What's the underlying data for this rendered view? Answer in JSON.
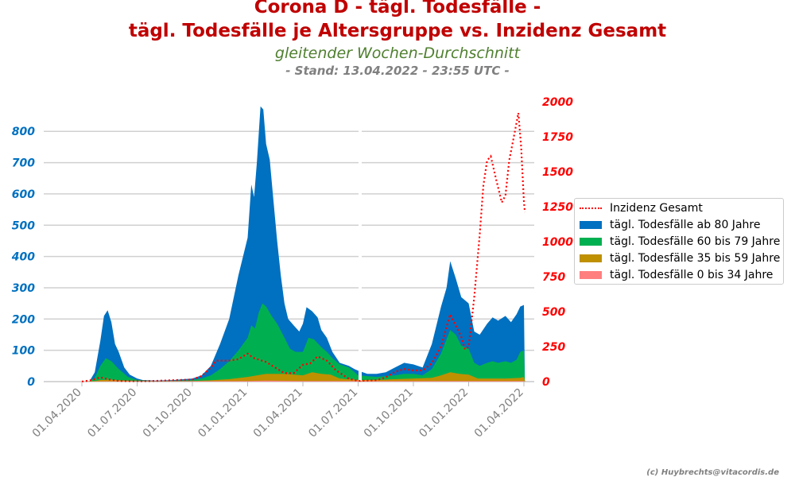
{
  "header": {
    "title_line1": "Corona D - tägl. Todesfälle -",
    "title_line2": "tägl. Todesfälle je Altersgruppe vs. Inzidenz Gesamt",
    "subtitle": "gleitender Wochen-Durchschnitt",
    "stand": "- Stand: 13.04.2022 - 23:55 UTC -"
  },
  "credit": "(c) Huybrechts@vitacordis.de",
  "colors": {
    "ab80": "#0070c0",
    "60bis79": "#00b050",
    "35bis59": "#bf9000",
    "0bis34": "#ff7f7f",
    "inzidenz": "#ff0000",
    "left_axis": "#0070c0",
    "right_axis": "#ff0000"
  },
  "chart_data": {
    "type": "area",
    "title": "Corona D - tägl. Todesfälle - tägl. Todesfälle je Altersgruppe vs. Inzidenz Gesamt",
    "subtitle": "gleitender Wochen-Durchschnitt",
    "x_ticks": [
      "01.04.2020",
      "01.07.2020",
      "01.10.2020",
      "01.01.2021",
      "01.04.2021",
      "01.07.2021",
      "01.10.2021",
      "01.01.2022",
      "01.04.2022"
    ],
    "x_tick_months": [
      0,
      3,
      6,
      9,
      12,
      15,
      18,
      21,
      24
    ],
    "y_left": {
      "ticks": [
        0,
        100,
        200,
        300,
        400,
        500,
        600,
        700,
        800
      ],
      "ylim": [
        0,
        915
      ]
    },
    "y_right": {
      "ticks": [
        0,
        250,
        500,
        750,
        1000,
        1250,
        1500,
        1750,
        2000
      ],
      "ylim": [
        0,
        2000
      ]
    },
    "grid": true,
    "legend_position": "right",
    "series": [
      {
        "name": "tägl. Todesfälle ab 80 Jahre",
        "type": "area",
        "axis": "left",
        "points": [
          [
            0,
            0
          ],
          [
            0.4,
            0
          ],
          [
            0.7,
            30
          ],
          [
            1,
            130
          ],
          [
            1.2,
            210
          ],
          [
            1.4,
            228
          ],
          [
            1.6,
            190
          ],
          [
            1.8,
            120
          ],
          [
            2,
            95
          ],
          [
            2.3,
            45
          ],
          [
            2.6,
            22
          ],
          [
            3,
            10
          ],
          [
            3.3,
            5
          ],
          [
            4,
            3
          ],
          [
            5,
            5
          ],
          [
            6,
            10
          ],
          [
            6.5,
            20
          ],
          [
            7,
            50
          ],
          [
            7.5,
            120
          ],
          [
            8,
            200
          ],
          [
            8.5,
            340
          ],
          [
            9,
            460
          ],
          [
            9.2,
            630
          ],
          [
            9.35,
            590
          ],
          [
            9.5,
            700
          ],
          [
            9.7,
            880
          ],
          [
            9.85,
            870
          ],
          [
            10,
            760
          ],
          [
            10.2,
            710
          ],
          [
            10.4,
            580
          ],
          [
            10.6,
            450
          ],
          [
            10.8,
            340
          ],
          [
            11,
            250
          ],
          [
            11.2,
            200
          ],
          [
            11.5,
            180
          ],
          [
            11.8,
            160
          ],
          [
            12,
            185
          ],
          [
            12.2,
            238
          ],
          [
            12.5,
            225
          ],
          [
            12.8,
            205
          ],
          [
            13,
            165
          ],
          [
            13.3,
            140
          ],
          [
            13.6,
            95
          ],
          [
            14,
            60
          ],
          [
            14.5,
            50
          ],
          [
            14.8,
            40
          ],
          [
            15,
            35
          ],
          [
            15.5,
            25
          ],
          [
            16,
            25
          ],
          [
            16.5,
            30
          ],
          [
            17,
            45
          ],
          [
            17.5,
            60
          ],
          [
            18,
            55
          ],
          [
            18.5,
            45
          ],
          [
            19,
            120
          ],
          [
            19.5,
            240
          ],
          [
            19.8,
            300
          ],
          [
            20,
            385
          ],
          [
            20.3,
            330
          ],
          [
            20.6,
            270
          ],
          [
            21,
            250
          ],
          [
            21.3,
            160
          ],
          [
            21.6,
            150
          ],
          [
            22,
            185
          ],
          [
            22.3,
            205
          ],
          [
            22.6,
            195
          ],
          [
            23,
            210
          ],
          [
            23.3,
            190
          ],
          [
            23.6,
            215
          ],
          [
            23.8,
            240
          ],
          [
            24,
            245
          ],
          [
            24.05,
            0
          ]
        ]
      },
      {
        "name": "tägl. Todesfälle 60 bis 79 Jahre",
        "type": "area",
        "axis": "left",
        "points": [
          [
            0,
            0
          ],
          [
            0.4,
            0
          ],
          [
            0.7,
            12
          ],
          [
            1,
            50
          ],
          [
            1.3,
            75
          ],
          [
            1.6,
            65
          ],
          [
            2,
            40
          ],
          [
            2.5,
            15
          ],
          [
            3,
            5
          ],
          [
            4,
            2
          ],
          [
            5,
            3
          ],
          [
            6,
            5
          ],
          [
            6.5,
            10
          ],
          [
            7,
            20
          ],
          [
            7.5,
            40
          ],
          [
            8,
            65
          ],
          [
            8.5,
            100
          ],
          [
            9,
            140
          ],
          [
            9.2,
            180
          ],
          [
            9.4,
            170
          ],
          [
            9.6,
            220
          ],
          [
            9.8,
            250
          ],
          [
            10,
            240
          ],
          [
            10.3,
            210
          ],
          [
            10.6,
            185
          ],
          [
            11,
            140
          ],
          [
            11.3,
            105
          ],
          [
            11.6,
            95
          ],
          [
            12,
            95
          ],
          [
            12.3,
            140
          ],
          [
            12.6,
            135
          ],
          [
            13,
            110
          ],
          [
            13.3,
            95
          ],
          [
            13.6,
            75
          ],
          [
            14,
            55
          ],
          [
            14.5,
            45
          ],
          [
            15,
            20
          ],
          [
            16,
            15
          ],
          [
            17,
            20
          ],
          [
            17.5,
            25
          ],
          [
            18,
            25
          ],
          [
            18.5,
            20
          ],
          [
            19,
            40
          ],
          [
            19.5,
            90
          ],
          [
            20,
            165
          ],
          [
            20.3,
            150
          ],
          [
            20.6,
            115
          ],
          [
            21,
            105
          ],
          [
            21.3,
            60
          ],
          [
            21.6,
            50
          ],
          [
            22,
            60
          ],
          [
            22.3,
            65
          ],
          [
            22.6,
            60
          ],
          [
            23,
            65
          ],
          [
            23.3,
            60
          ],
          [
            23.6,
            70
          ],
          [
            23.8,
            95
          ],
          [
            24,
            100
          ],
          [
            24.05,
            0
          ]
        ]
      },
      {
        "name": "tägl. Todesfälle 35 bis 59 Jahre",
        "type": "area",
        "axis": "left",
        "points": [
          [
            0,
            0
          ],
          [
            0.7,
            2
          ],
          [
            1,
            5
          ],
          [
            1.5,
            6
          ],
          [
            2,
            4
          ],
          [
            3,
            1
          ],
          [
            6,
            2
          ],
          [
            7,
            4
          ],
          [
            8,
            8
          ],
          [
            9,
            15
          ],
          [
            10,
            25
          ],
          [
            11,
            25
          ],
          [
            12,
            20
          ],
          [
            12.5,
            30
          ],
          [
            13,
            25
          ],
          [
            13.5,
            22
          ],
          [
            14,
            10
          ],
          [
            15,
            5
          ],
          [
            16,
            5
          ],
          [
            17,
            8
          ],
          [
            18,
            10
          ],
          [
            19,
            12
          ],
          [
            19.5,
            20
          ],
          [
            20,
            30
          ],
          [
            20.5,
            25
          ],
          [
            21,
            22
          ],
          [
            21.5,
            10
          ],
          [
            22,
            10
          ],
          [
            23,
            10
          ],
          [
            23.8,
            12
          ],
          [
            24,
            15
          ],
          [
            24.05,
            0
          ]
        ]
      },
      {
        "name": "tägl. Todesfälle 0 bis 34 Jahre",
        "type": "area",
        "axis": "left",
        "points": [
          [
            0,
            0
          ],
          [
            1,
            1
          ],
          [
            9,
            2
          ],
          [
            10,
            3
          ],
          [
            12,
            2
          ],
          [
            20,
            2
          ],
          [
            24,
            2
          ],
          [
            24.05,
            0
          ]
        ]
      },
      {
        "name": "Inzidenz Gesamt",
        "type": "line",
        "axis": "right",
        "points": [
          [
            0,
            0
          ],
          [
            0.5,
            10
          ],
          [
            1,
            30
          ],
          [
            1.5,
            15
          ],
          [
            2,
            5
          ],
          [
            3,
            3
          ],
          [
            4,
            5
          ],
          [
            5,
            10
          ],
          [
            6,
            15
          ],
          [
            6.5,
            40
          ],
          [
            7,
            100
          ],
          [
            7.3,
            150
          ],
          [
            8,
            150
          ],
          [
            8.5,
            160
          ],
          [
            9,
            200
          ],
          [
            9.3,
            170
          ],
          [
            10,
            140
          ],
          [
            10.5,
            100
          ],
          [
            11,
            60
          ],
          [
            11.5,
            60
          ],
          [
            12,
            120
          ],
          [
            12.4,
            130
          ],
          [
            12.8,
            180
          ],
          [
            13.3,
            150
          ],
          [
            13.8,
            80
          ],
          [
            14.5,
            20
          ],
          [
            15,
            5
          ],
          [
            16,
            10
          ],
          [
            16.5,
            30
          ],
          [
            17,
            70
          ],
          [
            17.5,
            90
          ],
          [
            18,
            80
          ],
          [
            18.5,
            80
          ],
          [
            19,
            130
          ],
          [
            19.5,
            250
          ],
          [
            19.8,
            390
          ],
          [
            20,
            480
          ],
          [
            20.3,
            400
          ],
          [
            20.6,
            320
          ],
          [
            20.8,
            230
          ],
          [
            21,
            250
          ],
          [
            21.3,
            600
          ],
          [
            21.6,
            1050
          ],
          [
            21.8,
            1400
          ],
          [
            22,
            1580
          ],
          [
            22.2,
            1610
          ],
          [
            22.5,
            1440
          ],
          [
            22.8,
            1280
          ],
          [
            23,
            1330
          ],
          [
            23.2,
            1580
          ],
          [
            23.5,
            1780
          ],
          [
            23.7,
            1920
          ],
          [
            23.85,
            1680
          ],
          [
            24,
            1290
          ],
          [
            24.05,
            1210
          ]
        ]
      }
    ]
  }
}
